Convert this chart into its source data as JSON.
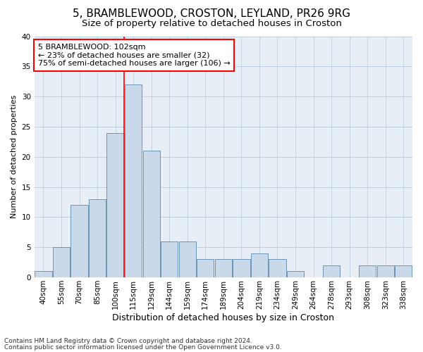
{
  "title": "5, BRAMBLEWOOD, CROSTON, LEYLAND, PR26 9RG",
  "subtitle": "Size of property relative to detached houses in Croston",
  "xlabel": "Distribution of detached houses by size in Croston",
  "ylabel": "Number of detached properties",
  "categories": [
    "40sqm",
    "55sqm",
    "70sqm",
    "85sqm",
    "100sqm",
    "115sqm",
    "129sqm",
    "144sqm",
    "159sqm",
    "174sqm",
    "189sqm",
    "204sqm",
    "219sqm",
    "234sqm",
    "249sqm",
    "264sqm",
    "278sqm",
    "293sqm",
    "308sqm",
    "323sqm",
    "338sqm"
  ],
  "values": [
    1,
    5,
    12,
    13,
    24,
    32,
    21,
    6,
    6,
    3,
    3,
    3,
    4,
    3,
    1,
    0,
    2,
    0,
    2,
    2,
    2
  ],
  "bar_color": "#c9d9ea",
  "bar_edge_color": "#5a8ab0",
  "red_line_index": 4,
  "annotation_line1": "5 BRAMBLEWOOD: 102sqm",
  "annotation_line2": "← 23% of detached houses are smaller (32)",
  "annotation_line3": "75% of semi-detached houses are larger (106) →",
  "annotation_box_color": "white",
  "annotation_box_edge_color": "red",
  "ylim": [
    0,
    40
  ],
  "yticks": [
    0,
    5,
    10,
    15,
    20,
    25,
    30,
    35,
    40
  ],
  "grid_color": "#b8c8d8",
  "background_color": "#e8eef5",
  "footer_line1": "Contains HM Land Registry data © Crown copyright and database right 2024.",
  "footer_line2": "Contains public sector information licensed under the Open Government Licence v3.0.",
  "title_fontsize": 11,
  "subtitle_fontsize": 9.5,
  "xlabel_fontsize": 9,
  "ylabel_fontsize": 8,
  "tick_fontsize": 7.5,
  "annot_fontsize": 8,
  "footer_fontsize": 6.5
}
